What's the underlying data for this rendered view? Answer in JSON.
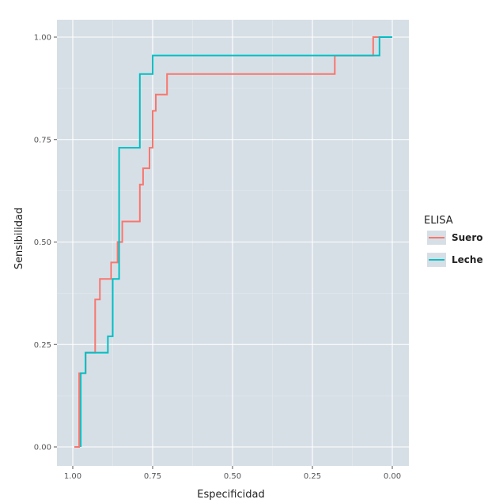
{
  "chart_data": {
    "type": "line",
    "step": true,
    "xlabel": "Especificidad",
    "ylabel": "Sensibilidad",
    "xlim": [
      1.0,
      0.0
    ],
    "ylim": [
      0.0,
      1.0
    ],
    "x_reversed": true,
    "x_ticks": [
      1.0,
      0.75,
      0.5,
      0.25,
      0.0
    ],
    "x_tick_labels": [
      "1.00",
      "0.75",
      "0.50",
      "0.25",
      "0.00"
    ],
    "y_ticks": [
      0.0,
      0.25,
      0.5,
      0.75,
      1.0
    ],
    "y_tick_labels": [
      "0.00",
      "0.25",
      "0.50",
      "0.75",
      "1.00"
    ],
    "grid": true,
    "panel_background": "#d7dfe6",
    "legend": {
      "title": "ELISA",
      "position": "right",
      "entries": [
        "Suero",
        "Leche"
      ]
    },
    "series": [
      {
        "name": "Suero",
        "color": "#f8766d",
        "x": [
          0.995,
          0.98,
          0.98,
          0.96,
          0.96,
          0.93,
          0.93,
          0.915,
          0.915,
          0.88,
          0.88,
          0.86,
          0.86,
          0.845,
          0.845,
          0.83,
          0.83,
          0.79,
          0.79,
          0.78,
          0.78,
          0.76,
          0.76,
          0.75,
          0.75,
          0.74,
          0.74,
          0.725,
          0.725,
          0.705,
          0.705,
          0.665,
          0.665,
          0.18,
          0.18,
          0.06,
          0.06,
          0.0
        ],
        "y": [
          0.0,
          0.0,
          0.18,
          0.18,
          0.23,
          0.23,
          0.36,
          0.36,
          0.41,
          0.41,
          0.45,
          0.45,
          0.5,
          0.5,
          0.55,
          0.55,
          0.55,
          0.55,
          0.64,
          0.64,
          0.68,
          0.68,
          0.73,
          0.73,
          0.82,
          0.82,
          0.86,
          0.86,
          0.86,
          0.86,
          0.91,
          0.91,
          0.91,
          0.91,
          0.955,
          0.955,
          1.0,
          1.0
        ]
      },
      {
        "name": "Leche",
        "color": "#00bfc4",
        "x": [
          0.975,
          0.975,
          0.96,
          0.96,
          0.89,
          0.89,
          0.875,
          0.875,
          0.855,
          0.855,
          0.79,
          0.79,
          0.765,
          0.765,
          0.75,
          0.75,
          0.04,
          0.04,
          0.0
        ],
        "y": [
          0.0,
          0.18,
          0.18,
          0.23,
          0.23,
          0.27,
          0.27,
          0.41,
          0.41,
          0.73,
          0.73,
          0.91,
          0.91,
          0.91,
          0.91,
          0.955,
          0.955,
          1.0,
          1.0
        ]
      }
    ]
  }
}
